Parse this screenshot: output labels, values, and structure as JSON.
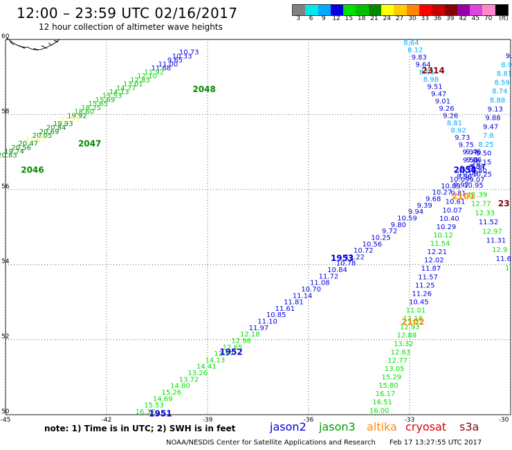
{
  "header": {
    "title": "12:00 – 23:59 UTC 02/16/2017",
    "subtitle": "12 hour collection of altimeter wave heights"
  },
  "colorbar": {
    "colors": [
      "#808080",
      "#00e8e8",
      "#00aaff",
      "#0000e0",
      "#00e000",
      "#00c000",
      "#008800",
      "#ffff00",
      "#ffcc00",
      "#ff8800",
      "#ff0000",
      "#cc0000",
      "#880000",
      "#9900aa",
      "#dd44dd",
      "#ff88cc",
      "#000000"
    ],
    "labels": [
      "3",
      "6",
      "9",
      "12",
      "15",
      "18",
      "21",
      "24",
      "27",
      "30",
      "33",
      "36",
      "39",
      "42",
      "45",
      "70",
      "(ft)"
    ]
  },
  "map": {
    "lon_range": [
      -45,
      -30
    ],
    "lat_range": [
      50,
      60
    ],
    "x_ticks": [
      "-45",
      "-42",
      "-39",
      "-36",
      "-33",
      "-30"
    ],
    "y_ticks": [
      "50",
      "52",
      "54",
      "56",
      "58",
      "60"
    ],
    "grid": true,
    "tracks": [
      {
        "name": "2048-2046",
        "sat": "jason3",
        "time_label": "2048",
        "time_label_at": [
          -39.1,
          58.6
        ],
        "time_color": "#008800",
        "start": [
          -39.55,
          59.6
        ],
        "end": [
          -44.95,
          56.85
        ],
        "colors": [
          "#0000e0",
          "#0000e0",
          "#0000e0",
          "#0000e0",
          "#0000e0",
          "#00e000",
          "#00e000",
          "#00c000",
          "#00c000",
          "#00c000",
          "#00c000",
          "#00c000",
          "#00c000",
          "#00c000",
          "#00c000",
          "#00c000",
          "#008800",
          "#ffff00",
          "#008800",
          "#008800",
          "#008800",
          "#008800",
          "#ffff00",
          "#008800",
          "#008800",
          "#008800",
          "#008800"
        ],
        "values": [
          "10.73",
          "10.33",
          "9.65",
          "11.00",
          "11.68",
          "11.92",
          "12.10",
          "12.83",
          "13.01",
          "14.77",
          "14.13",
          "15.53",
          "15.69",
          "15.65",
          "18.25",
          "18.60",
          "19.92",
          "21.22",
          "19.93",
          "20.84",
          "20.69",
          "20.05",
          "21.05",
          "20.47",
          "20.56",
          "19.74",
          "20.83"
        ]
      },
      {
        "name": "2047-label",
        "sat": "jason3",
        "time_label": "2047",
        "time_label_at": [
          -42.5,
          57.15
        ],
        "time_color": "#008800",
        "start": [
          -42.5,
          57.15
        ],
        "end": [
          -42.5,
          57.15
        ],
        "colors": [],
        "values": []
      },
      {
        "name": "2046-label",
        "sat": "jason3",
        "time_label": "2046",
        "time_label_at": [
          -44.2,
          56.45
        ],
        "time_color": "#008800",
        "start": [
          -44.2,
          56.45
        ],
        "end": [
          -44.2,
          56.45
        ],
        "colors": [],
        "values": []
      },
      {
        "name": "1951-1953",
        "sat": "jason2",
        "time_label": "1953",
        "time_label_at": [
          -35.0,
          54.1
        ],
        "time_color": "#0000e0",
        "start": [
          -40.85,
          50.02
        ],
        "end": [
          -31.0,
          56.55
        ],
        "colors": [
          "#00e000",
          "#00e000",
          "#00e000",
          "#00e000",
          "#00e000",
          "#00e000",
          "#00e000",
          "#00e000",
          "#00e000",
          "#00e000",
          "#00e000",
          "#00e000",
          "#00e000",
          "#0000e0",
          "#0000e0",
          "#0000e0",
          "#0000e0",
          "#0000e0",
          "#0000e0",
          "#0000e0",
          "#0000e0",
          "#0000e0",
          "#0000e0",
          "#0000e0",
          "#0000e0",
          "#0000e0",
          "#0000e0",
          "#0000e0",
          "#0000e0",
          "#0000e0",
          "#0000e0",
          "#0000e0",
          "#0000e0",
          "#0000e0",
          "#0000e0",
          "#0000e0",
          "#0000e0",
          "#0000e0",
          "#0000e0"
        ],
        "values": [
          "16.37",
          "15.53",
          "14.69",
          "15.26",
          "14.80",
          "13.72",
          "13.26",
          "14.41",
          "14.13",
          "12.57",
          "12.65",
          "12.98",
          "12.18",
          "11.97",
          "11.10",
          "10.85",
          "11.61",
          "11.81",
          "11.14",
          "10.70",
          "11.08",
          "11.72",
          "10.84",
          "10.78",
          "11.22",
          "10.72",
          "10.56",
          "10.25",
          "9.72",
          "9.80",
          "10.59",
          "9.94",
          "9.39",
          "9.68",
          "10.27",
          "10.83",
          "10.09",
          "10.09",
          "9.84"
        ]
      },
      {
        "name": "1952-label",
        "sat": "jason2",
        "time_label": "1952",
        "time_label_at": [
          -38.3,
          51.6
        ],
        "time_color": "#0000e0",
        "start": [
          -38.3,
          51.6
        ],
        "end": [
          -38.3,
          51.6
        ],
        "colors": [],
        "values": []
      },
      {
        "name": "1951-label",
        "sat": "jason2",
        "time_label": "1951",
        "time_label_at": [
          -40.4,
          49.95
        ],
        "time_color": "#0000e0",
        "start": [
          -40.4,
          49.95
        ],
        "end": [
          -40.4,
          49.95
        ],
        "colors": [],
        "values": []
      },
      {
        "name": "2102-2101",
        "sat": "altika",
        "time_label": "2101",
        "time_label_at": [
          -31.4,
          55.75
        ],
        "time_color": "#ff8800",
        "start": [
          -33.9,
          50.05
        ],
        "end": [
          -31.1,
          56.95
        ],
        "colors": [
          "#00e000",
          "#00e000",
          "#00e000",
          "#00e000",
          "#00e000",
          "#00e000",
          "#00e000",
          "#00e000",
          "#00e000",
          "#00e000",
          "#00e000",
          "#00e000",
          "#00e000",
          "#0000e0",
          "#0000e0",
          "#0000e0",
          "#0000e0",
          "#0000e0",
          "#0000e0",
          "#0000e0",
          "#00e000",
          "#00e000",
          "#0000e0",
          "#0000e0",
          "#0000e0",
          "#0000e0",
          "#0000e0",
          "#0000e0",
          "#0000e0",
          "#0000e0",
          "#0000e0",
          "#0000e0"
        ],
        "values": [
          "16.00",
          "16.51",
          "16.17",
          "15.80",
          "15.29",
          "13.05",
          "12.77",
          "12.63",
          "13.32",
          "12.88",
          "12.93",
          "12.18",
          "11.01",
          "10.45",
          "11.26",
          "11.25",
          "11.57",
          "11.87",
          "12.02",
          "12.21",
          "11.54",
          "10.12",
          "10.29",
          "10.40",
          "10.07",
          "10.61",
          "9.81",
          "9.97",
          "9.96",
          "9.73",
          "9.58",
          "9.46"
        ]
      },
      {
        "name": "2102-label",
        "sat": "altika",
        "time_label": "2102",
        "time_label_at": [
          -32.9,
          52.4
        ],
        "time_color": "#ff8800",
        "start": [
          -32.9,
          52.4
        ],
        "end": [
          -32.9,
          52.4
        ],
        "colors": [],
        "values": []
      },
      {
        "name": "2314",
        "sat": "cryosat",
        "time_label": "2314",
        "time_label_at": [
          -32.3,
          59.1
        ],
        "time_color": "#880000",
        "start": [
          -32.95,
          59.85
        ],
        "end": [
          -30.85,
          56.35
        ],
        "colors": [
          "#00aaff",
          "#00aaff",
          "#0000e0",
          "#0000e0",
          "#00aaff",
          "#00aaff",
          "#0000e0",
          "#0000e0",
          "#0000e0",
          "#0000e0",
          "#0000e0",
          "#00aaff",
          "#00aaff",
          "#0000e0",
          "#0000e0",
          "#0000e0",
          "#0000e0",
          "#0000e0",
          "#0000e0"
        ],
        "values": [
          "8.64",
          "8.12",
          "9.83",
          "9.64",
          "8.91",
          "8.98",
          "9.51",
          "9.47",
          "9.01",
          "9.26",
          "9.26",
          "8.81",
          "8.92",
          "9.73",
          "9.75",
          "9.37",
          "9.06",
          "9.27",
          "10.25"
        ]
      },
      {
        "name": "east-track",
        "sat": "jason3",
        "time_label": "",
        "time_label_at": [
          -30.1,
          55.5
        ],
        "time_color": "#880000",
        "start": [
          -30.05,
          59.5
        ],
        "end": [
          -31.0,
          56.2
        ],
        "colors": [
          "#0000e0",
          "#00aaff",
          "#00aaff",
          "#00aaff",
          "#00aaff",
          "#00aaff",
          "#0000e0",
          "#0000e0",
          "#0000e0",
          "#00aaff",
          "#00aaff",
          "#0000e0",
          "#0000e0",
          "#0000e0",
          "#0000e0"
        ],
        "values": [
          "9.",
          "8.9",
          "8.81",
          "8.59",
          "8.74",
          "8.88",
          "9.13",
          "9.88",
          "9.47",
          "7.8",
          "8.25",
          "8.50",
          "10.15",
          "9.40",
          "9.07"
        ]
      },
      {
        "name": "east-lower",
        "sat": "jason3",
        "time_label": "",
        "time_label_at": [
          -30.1,
          55.5
        ],
        "time_color": "#880000",
        "start": [
          -31.1,
          56.05
        ],
        "end": [
          -30.1,
          53.85
        ],
        "colors": [
          "#0000e0",
          "#00e000",
          "#00e000",
          "#00e000",
          "#0000e0",
          "#00e000",
          "#0000e0",
          "#00e000",
          "#0000e0",
          "#00e000"
        ],
        "values": [
          "10.95",
          "11.39",
          "12.77",
          "12.33",
          "11.52",
          "12.97",
          "11.31",
          "12.9",
          "11.6",
          "1"
        ]
      }
    ],
    "extra_labels": [
      {
        "text": "23",
        "lon": -30.2,
        "lat": 55.55,
        "color": "#880000"
      },
      {
        "text": "2054",
        "lon": -31.35,
        "lat": 56.45,
        "color": "#0000e0"
      }
    ]
  },
  "legend": {
    "note": "note: 1) Time is in UTC; 2) SWH is in feet",
    "satellites": [
      {
        "name": "jason2",
        "color": "#0000e0",
        "x": 390
      },
      {
        "name": "jason3",
        "color": "#00a000",
        "x": 461
      },
      {
        "name": "altika",
        "color": "#ff8800",
        "x": 530
      },
      {
        "name": "cryosat",
        "color": "#dd0000",
        "x": 586
      },
      {
        "name": "s3a",
        "color": "#880000",
        "x": 664
      }
    ]
  },
  "footer": {
    "credit": "NOAA/NESDIS Center for Satellite Applications and Research",
    "timestamp": "Feb 17 13:27:55 UTC 2017"
  }
}
